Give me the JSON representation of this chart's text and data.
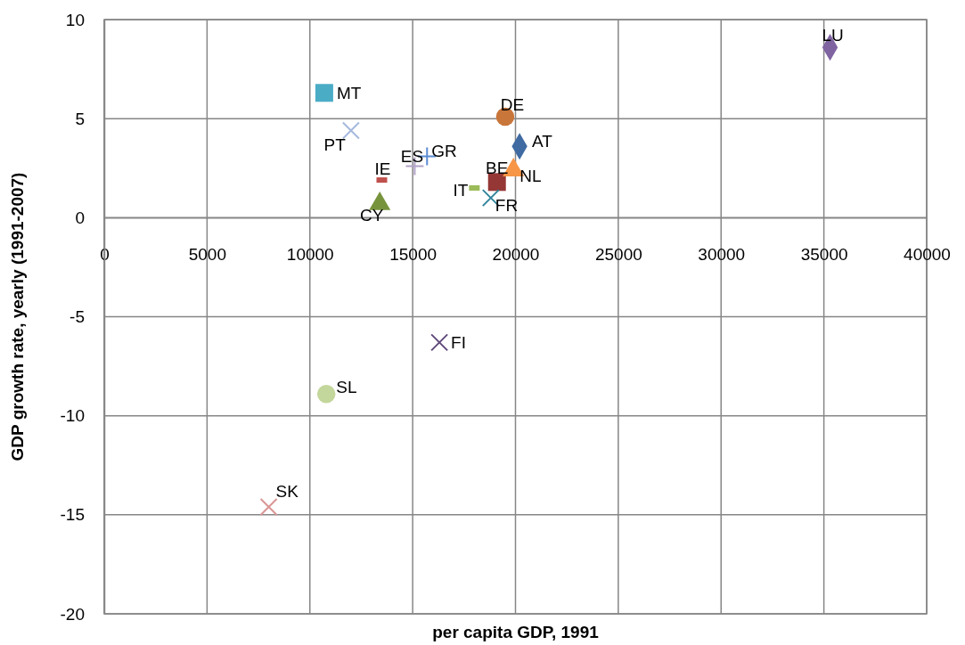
{
  "chart_data": {
    "type": "scatter",
    "xlabel": "per capita GDP, 1991",
    "ylabel": "GDP growth rate, yearly (1991-2007)",
    "xlim": [
      0,
      40000
    ],
    "xticks": [
      0,
      5000,
      10000,
      15000,
      20000,
      25000,
      30000,
      35000,
      40000
    ],
    "ylim": [
      -20,
      10
    ],
    "yticks": [
      -20,
      -15,
      -10,
      -5,
      0,
      5,
      10
    ],
    "grid": true,
    "series": [
      {
        "name": "MT",
        "color": "#4bacc6",
        "marker": "square",
        "x": [
          10700
        ],
        "values": [
          6.3
        ]
      },
      {
        "name": "PT",
        "color": "#a6b9dd",
        "marker": "cross",
        "x": [
          12000
        ],
        "values": [
          4.4
        ]
      },
      {
        "name": "DE",
        "color": "#c9763a",
        "marker": "circle",
        "x": [
          19500
        ],
        "values": [
          5.1
        ]
      },
      {
        "name": "AT",
        "color": "#3f6aa2",
        "marker": "diamond",
        "x": [
          20200
        ],
        "values": [
          3.6
        ]
      },
      {
        "name": "GR",
        "color": "#5b8bd4",
        "marker": "plus",
        "x": [
          15700
        ],
        "values": [
          3.1
        ]
      },
      {
        "name": "ES",
        "color": "#b3a2c7",
        "marker": "plus",
        "x": [
          15100
        ],
        "values": [
          2.6
        ]
      },
      {
        "name": "IE",
        "color": "#c0504d",
        "marker": "square",
        "x": [
          13500
        ],
        "values": [
          1.9
        ]
      },
      {
        "name": "CY",
        "color": "#77933c",
        "marker": "triangle",
        "x": [
          13400
        ],
        "values": [
          0.7
        ]
      },
      {
        "name": "BE",
        "color": "#953735",
        "marker": "square",
        "x": [
          19100
        ],
        "values": [
          1.8
        ]
      },
      {
        "name": "NL",
        "color": "#f79646",
        "marker": "triangle",
        "x": [
          19900
        ],
        "values": [
          2.4
        ]
      },
      {
        "name": "IT",
        "color": "#9bbb59",
        "marker": "square",
        "x": [
          18000
        ],
        "values": [
          1.5
        ]
      },
      {
        "name": "FR",
        "color": "#31859c",
        "marker": "cross",
        "x": [
          18800
        ],
        "values": [
          1.0
        ]
      },
      {
        "name": "FI",
        "color": "#604a7b",
        "marker": "cross",
        "x": [
          16300
        ],
        "values": [
          -6.3
        ]
      },
      {
        "name": "SL",
        "color": "#c3d69b",
        "marker": "circle",
        "x": [
          10800
        ],
        "values": [
          -8.9
        ]
      },
      {
        "name": "SK",
        "color": "#d99694",
        "marker": "cross",
        "x": [
          8000
        ],
        "values": [
          -14.6
        ]
      },
      {
        "name": "LU",
        "color": "#8064a2",
        "marker": "diamond",
        "x": [
          35300
        ],
        "values": [
          8.6
        ]
      }
    ]
  }
}
